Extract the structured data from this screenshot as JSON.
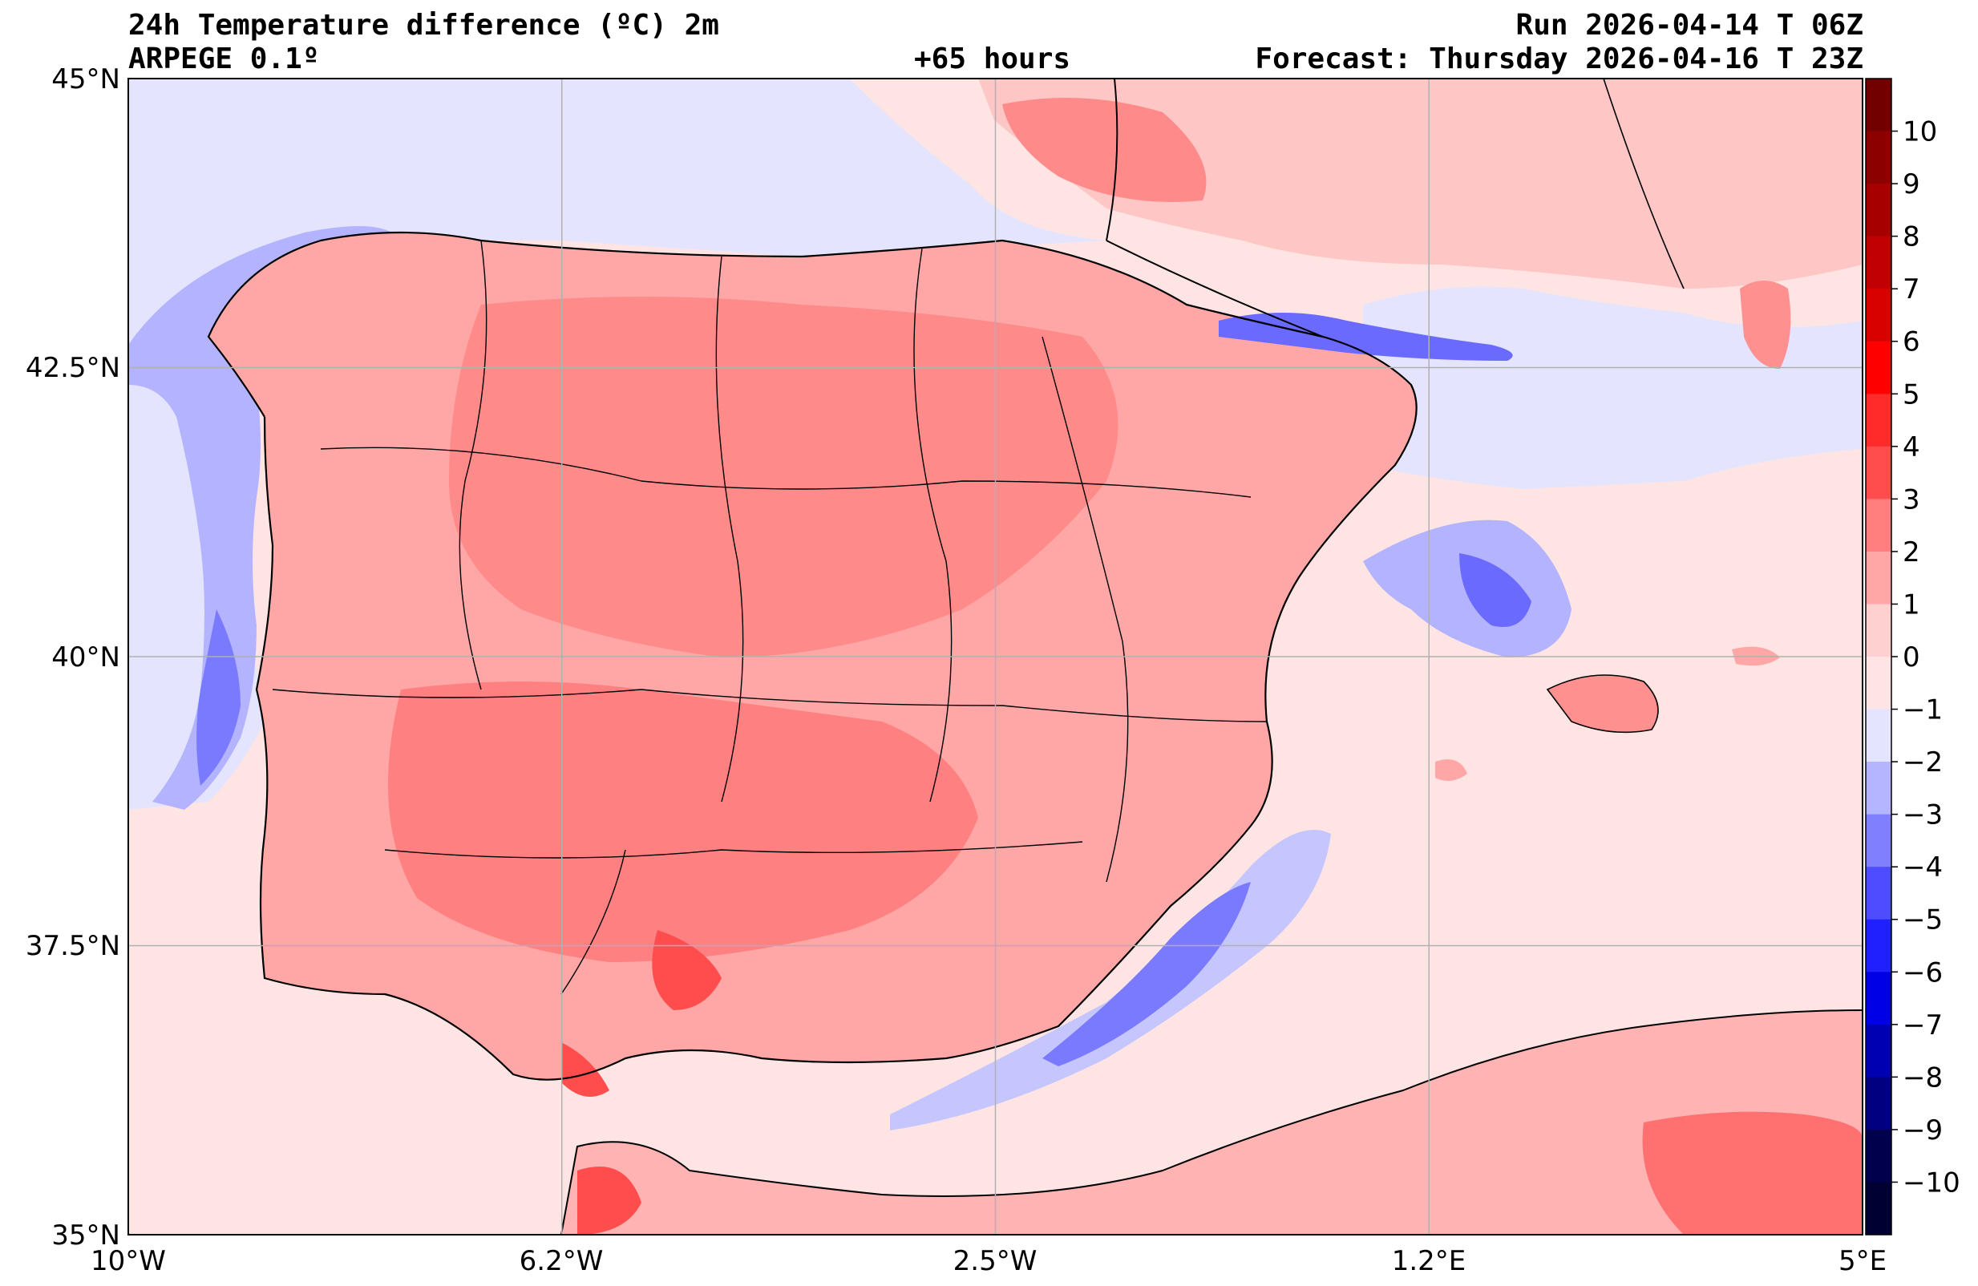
{
  "header": {
    "title": "24h Temperature difference (ºC) 2m",
    "model": "ARPEGE 0.1º",
    "lead_time": "+65 hours",
    "run": "Run 2026-04-14 T 06Z",
    "forecast": "Forecast: Thursday 2026-04-16 T 23Z"
  },
  "map": {
    "lat_ticks": [
      "45°N",
      "42.5°N",
      "40°N",
      "37.5°N",
      "35°N"
    ],
    "lon_ticks": [
      "10°W",
      "6.2°W",
      "2.5°W",
      "1.2°E",
      "5°E"
    ],
    "lat_range": [
      35,
      45
    ],
    "lon_range": [
      -10,
      5
    ],
    "grid": true
  },
  "colorbar": {
    "labels": [
      "10",
      "9",
      "8",
      "7",
      "6",
      "5",
      "4",
      "3",
      "2",
      "1",
      "0",
      "−1",
      "−2",
      "−3",
      "−4",
      "−5",
      "−6",
      "−7",
      "−8",
      "−9",
      "−10"
    ],
    "colors": [
      "#730000",
      "#8c0000",
      "#a60000",
      "#c00000",
      "#d90000",
      "#ff0000",
      "#ff2a2a",
      "#ff4d4d",
      "#ff7f7f",
      "#ffa6a6",
      "#ffd0d0",
      "#ffe4e4",
      "#e4e4ff",
      "#b5b5ff",
      "#8080ff",
      "#4d4dff",
      "#2020ff",
      "#0000e6",
      "#0000b3",
      "#000080",
      "#00004d",
      "#000033"
    ]
  },
  "legend_colors": {
    "sea_neutral_warm": "#ffe4e4",
    "sea_neutral_cold": "#e4e4ff",
    "warm_1": "#ffb3b3",
    "warm_2": "#ff8080",
    "warm_3": "#ff5555",
    "cold_1": "#b3b3ff",
    "cold_2": "#7070ff"
  }
}
